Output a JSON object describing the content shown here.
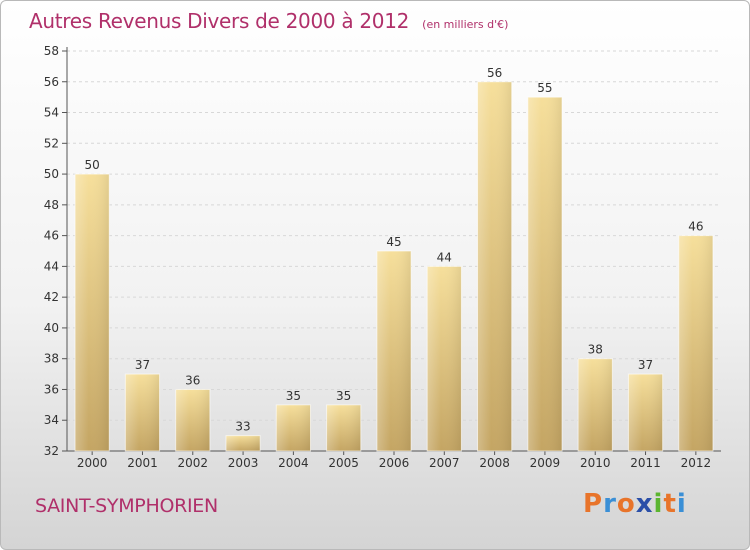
{
  "header": {
    "title": "Autres Revenus Divers de 2000 à 2012",
    "unit": "(en milliers d'€)"
  },
  "footer": {
    "commune": "SAINT-SYMPHORIEN",
    "logo_letters": [
      "P",
      "r",
      "o",
      "x",
      "i",
      "t",
      "i"
    ],
    "logo_colors": [
      "#e8742a",
      "#3a8fd6",
      "#e8742a",
      "#2b4fa8",
      "#5cb530",
      "#e8742a",
      "#3a8fd6"
    ]
  },
  "chart_data": {
    "type": "bar",
    "title": "Autres Revenus Divers de 2000 à 2012",
    "xlabel": "",
    "ylabel": "",
    "categories": [
      "2000",
      "2001",
      "2002",
      "2003",
      "2004",
      "2005",
      "2006",
      "2007",
      "2008",
      "2009",
      "2010",
      "2011",
      "2012"
    ],
    "values": [
      50,
      37,
      36,
      33,
      35,
      35,
      45,
      44,
      56,
      55,
      38,
      37,
      46
    ],
    "ylim": [
      32,
      58
    ],
    "yticks": [
      32,
      34,
      36,
      38,
      40,
      42,
      44,
      46,
      48,
      50,
      52,
      54,
      56,
      58
    ],
    "grid": true,
    "bar_color": "#e4c97e",
    "legend": "none"
  }
}
